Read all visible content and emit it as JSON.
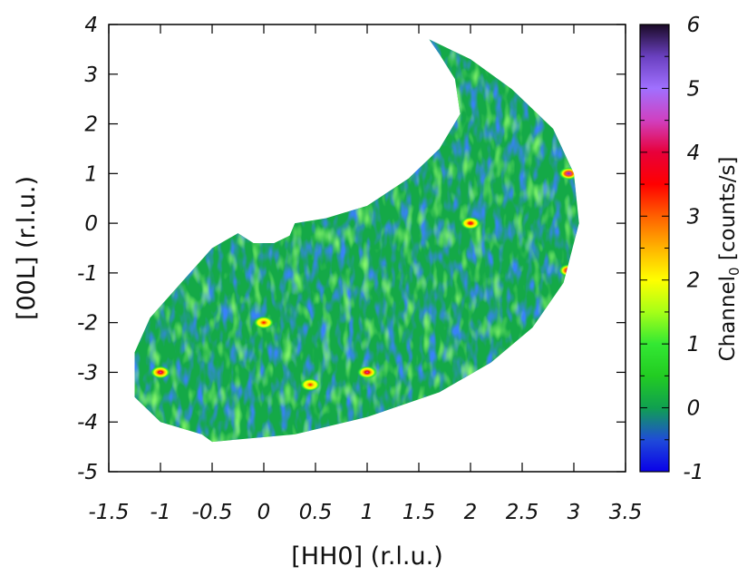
{
  "chart_data": {
    "type": "heatmap",
    "title": "",
    "xlabel": "[HH0] (r.l.u.)",
    "ylabel": "[00L] (r.l.u.)",
    "xlim": [
      -1.5,
      3.5
    ],
    "ylim": [
      -5,
      4
    ],
    "x_ticks": [
      "-1.5",
      "-1",
      "-0.5",
      "0",
      "0.5",
      "1",
      "1.5",
      "2",
      "2.5",
      "3",
      "3.5"
    ],
    "y_ticks": [
      "-5",
      "-4",
      "-3",
      "-2",
      "-1",
      "0",
      "1",
      "2",
      "3",
      "4"
    ],
    "grid": false,
    "colorbar": {
      "label_main": "Channel",
      "label_sub": "0",
      "label_unit": " [counts/s]",
      "range": [
        -1,
        6
      ],
      "ticks": [
        "-1",
        "0",
        "1",
        "2",
        "3",
        "4",
        "5",
        "6"
      ],
      "stops": [
        {
          "value": -1,
          "color": "#0a00e8"
        },
        {
          "value": -0.5,
          "color": "#1f4cd8"
        },
        {
          "value": 0,
          "color": "#10a050"
        },
        {
          "value": 0.5,
          "color": "#22cc22"
        },
        {
          "value": 1,
          "color": "#33e833"
        },
        {
          "value": 1.5,
          "color": "#a6ff18"
        },
        {
          "value": 2,
          "color": "#ffff00"
        },
        {
          "value": 2.5,
          "color": "#ffb400"
        },
        {
          "value": 3,
          "color": "#ff6000"
        },
        {
          "value": 3.5,
          "color": "#ff0000"
        },
        {
          "value": 4,
          "color": "#e8003a"
        },
        {
          "value": 4.5,
          "color": "#d040c0"
        },
        {
          "value": 5,
          "color": "#a070ff"
        },
        {
          "value": 5.5,
          "color": "#6a40c0"
        },
        {
          "value": 6,
          "color": "#1a0a25"
        }
      ]
    },
    "background_level": 0.1,
    "coverage_region": [
      [
        1.6,
        3.7
      ],
      [
        2.0,
        3.3
      ],
      [
        2.4,
        2.7
      ],
      [
        2.8,
        1.9
      ],
      [
        3.0,
        1.0
      ],
      [
        3.05,
        0.0
      ],
      [
        2.9,
        -1.2
      ],
      [
        2.6,
        -2.1
      ],
      [
        2.2,
        -2.8
      ],
      [
        1.7,
        -3.4
      ],
      [
        1.0,
        -3.9
      ],
      [
        0.3,
        -4.25
      ],
      [
        -0.5,
        -4.4
      ],
      [
        -0.6,
        -4.25
      ],
      [
        -1.0,
        -4.0
      ],
      [
        -1.25,
        -3.5
      ],
      [
        -1.25,
        -2.6
      ],
      [
        -1.1,
        -1.9
      ],
      [
        -0.8,
        -1.2
      ],
      [
        -0.5,
        -0.5
      ],
      [
        -0.25,
        -0.2
      ],
      [
        -0.1,
        -0.4
      ],
      [
        0.1,
        -0.4
      ],
      [
        0.25,
        -0.25
      ],
      [
        0.3,
        0.0
      ],
      [
        0.6,
        0.1
      ],
      [
        1.0,
        0.35
      ],
      [
        1.4,
        0.9
      ],
      [
        1.7,
        1.5
      ],
      [
        1.9,
        2.2
      ],
      [
        1.85,
        2.9
      ],
      [
        1.7,
        3.4
      ]
    ],
    "peaks": [
      {
        "x": 2.95,
        "y": 1.0,
        "intensity": 5.5
      },
      {
        "x": 2.0,
        "y": 0.0,
        "intensity": 4.0
      },
      {
        "x": 2.95,
        "y": -0.95,
        "intensity": 5.3
      },
      {
        "x": 0.0,
        "y": -2.0,
        "intensity": 3.5
      },
      {
        "x": -1.0,
        "y": -3.0,
        "intensity": 4.6
      },
      {
        "x": 0.45,
        "y": -3.25,
        "intensity": 3.4
      },
      {
        "x": 1.0,
        "y": -3.0,
        "intensity": 4.6
      }
    ]
  }
}
